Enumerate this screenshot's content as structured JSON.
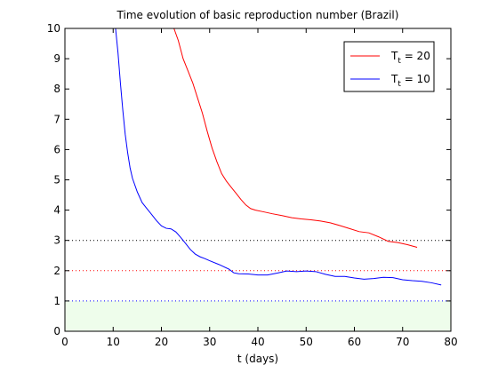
{
  "chart_data": {
    "type": "line",
    "title": "Time evolution of basic reproduction number (Brazil)",
    "xlabel": "t (days)",
    "ylabel": "",
    "xlim": [
      0,
      80
    ],
    "ylim": [
      0,
      10
    ],
    "xticks": [
      0,
      10,
      20,
      30,
      40,
      50,
      60,
      70,
      80
    ],
    "yticks": [
      0,
      1,
      2,
      3,
      4,
      5,
      6,
      7,
      8,
      9,
      10
    ],
    "grid": false,
    "legend_position": "top-right",
    "series": [
      {
        "name": "Tt = 20",
        "name_base": "T",
        "name_sub": "t",
        "name_rest": " = 20",
        "color": "#ff0000",
        "points": [
          [
            22.6,
            10
          ],
          [
            23.5,
            9.6
          ],
          [
            24.5,
            9.0
          ],
          [
            25.5,
            8.6
          ],
          [
            26.5,
            8.2
          ],
          [
            27.5,
            7.7
          ],
          [
            28.5,
            7.2
          ],
          [
            29.5,
            6.6
          ],
          [
            30.5,
            6.05
          ],
          [
            31.5,
            5.6
          ],
          [
            32.5,
            5.2
          ],
          [
            33.5,
            4.95
          ],
          [
            34.5,
            4.75
          ],
          [
            35.5,
            4.55
          ],
          [
            36.5,
            4.35
          ],
          [
            37.5,
            4.17
          ],
          [
            38.5,
            4.05
          ],
          [
            39.5,
            4.0
          ],
          [
            41,
            3.95
          ],
          [
            43,
            3.88
          ],
          [
            45,
            3.82
          ],
          [
            47,
            3.75
          ],
          [
            49,
            3.71
          ],
          [
            51,
            3.68
          ],
          [
            53,
            3.64
          ],
          [
            55,
            3.58
          ],
          [
            57,
            3.49
          ],
          [
            59,
            3.39
          ],
          [
            61,
            3.29
          ],
          [
            63,
            3.25
          ],
          [
            65,
            3.12
          ],
          [
            67,
            2.97
          ],
          [
            69,
            2.93
          ],
          [
            71,
            2.86
          ],
          [
            73,
            2.77
          ]
        ]
      },
      {
        "name": "Tt = 10",
        "name_base": "T",
        "name_sub": "t",
        "name_rest": " = 10",
        "color": "#0000ff",
        "points": [
          [
            10.5,
            10
          ],
          [
            11,
            9.2
          ],
          [
            11.5,
            8.2
          ],
          [
            12,
            7.3
          ],
          [
            12.5,
            6.5
          ],
          [
            13,
            5.9
          ],
          [
            13.5,
            5.4
          ],
          [
            14,
            5.05
          ],
          [
            15,
            4.6
          ],
          [
            16,
            4.25
          ],
          [
            17,
            4.05
          ],
          [
            18,
            3.85
          ],
          [
            19,
            3.65
          ],
          [
            20,
            3.48
          ],
          [
            21,
            3.4
          ],
          [
            22,
            3.38
          ],
          [
            23,
            3.28
          ],
          [
            24,
            3.1
          ],
          [
            25,
            2.9
          ],
          [
            26,
            2.7
          ],
          [
            27,
            2.55
          ],
          [
            28,
            2.46
          ],
          [
            29,
            2.4
          ],
          [
            30,
            2.33
          ],
          [
            32,
            2.2
          ],
          [
            34,
            2.05
          ],
          [
            35,
            1.93
          ],
          [
            36,
            1.9
          ],
          [
            38,
            1.89
          ],
          [
            40,
            1.86
          ],
          [
            42,
            1.86
          ],
          [
            44,
            1.92
          ],
          [
            46,
            1.99
          ],
          [
            48,
            1.97
          ],
          [
            50,
            1.99
          ],
          [
            52,
            1.97
          ],
          [
            54,
            1.88
          ],
          [
            56,
            1.81
          ],
          [
            58,
            1.81
          ],
          [
            60,
            1.76
          ],
          [
            62,
            1.72
          ],
          [
            64,
            1.74
          ],
          [
            66,
            1.78
          ],
          [
            68,
            1.77
          ],
          [
            70,
            1.7
          ],
          [
            72,
            1.67
          ],
          [
            74,
            1.65
          ],
          [
            76,
            1.6
          ],
          [
            78,
            1.53
          ]
        ]
      }
    ],
    "reference_lines": [
      {
        "y": 3,
        "color": "#000000",
        "style": "dotted"
      },
      {
        "y": 2,
        "color": "#ff0000",
        "style": "dotted"
      },
      {
        "y": 1,
        "color": "#0000ff",
        "style": "dotted"
      }
    ],
    "shaded_band": {
      "y_from": 0,
      "y_to": 1,
      "color": "#eefdeb"
    }
  }
}
